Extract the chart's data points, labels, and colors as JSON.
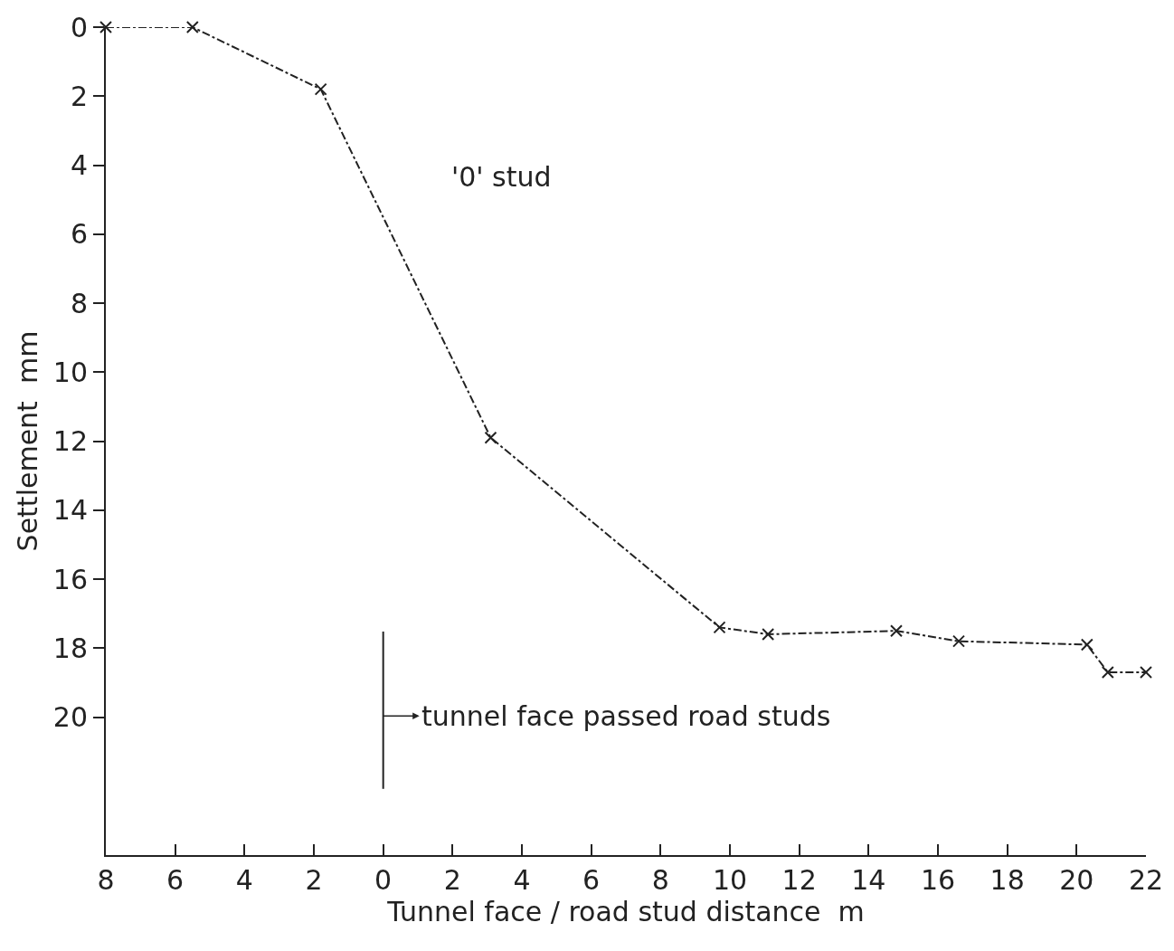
{
  "chart_data": {
    "type": "line",
    "xlabel": "Tunnel face / road stud distance  m",
    "ylabel": "Settlement  mm",
    "x": [
      -8,
      -5.5,
      -1.8,
      3.1,
      9.7,
      11.1,
      14.8,
      16.6,
      20.3,
      20.9,
      22
    ],
    "values": [
      0,
      0,
      1.8,
      11.9,
      17.4,
      17.6,
      17.5,
      17.8,
      17.9,
      18.7,
      18.7
    ],
    "color": "#222222",
    "marker": "cross",
    "line_style": "dashed",
    "grid": false,
    "xlim": [
      -8,
      22
    ],
    "ylim": [
      24,
      0
    ],
    "xticks": [
      {
        "value": -8,
        "label": "8"
      },
      {
        "value": -6,
        "label": "6"
      },
      {
        "value": -4,
        "label": "4"
      },
      {
        "value": -2,
        "label": "2"
      },
      0,
      2,
      4,
      6,
      8,
      10,
      12,
      14,
      16,
      18,
      20,
      22
    ],
    "yticks": [
      0,
      2,
      4,
      6,
      8,
      10,
      12,
      14,
      16,
      18,
      20
    ],
    "annotations": [
      "'0' stud"
    ],
    "ref_lines": [
      {
        "axis": "x",
        "value": 0,
        "label": "tunnel face passed road studs",
        "color": "#222222",
        "line_style": "solid"
      }
    ]
  }
}
